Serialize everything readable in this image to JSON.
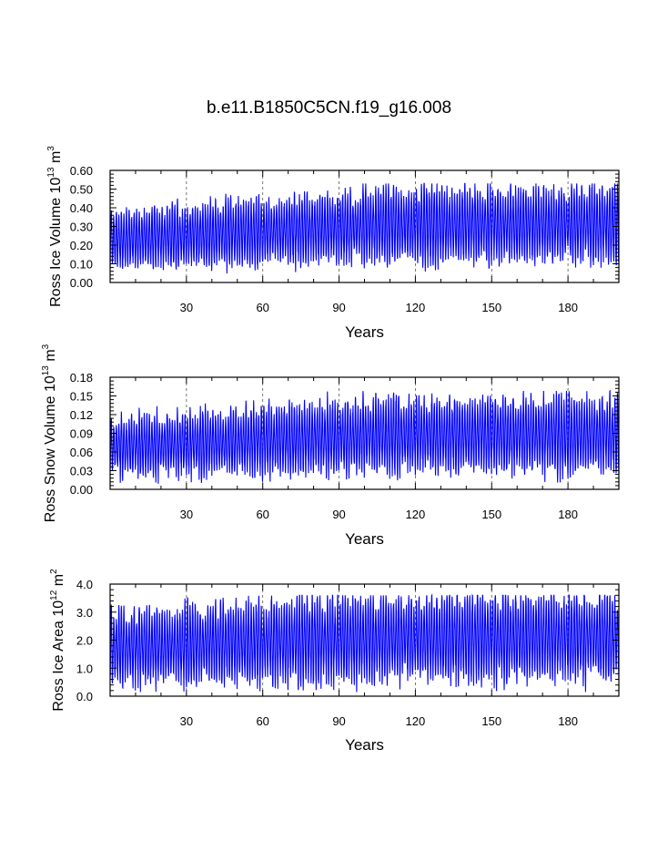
{
  "title": "b.e11.B1850C5CN.f19_g16.008",
  "colors": {
    "series": "#0000ff",
    "axis": "#000000",
    "grid": "#555555"
  },
  "chart_data": [
    {
      "type": "line",
      "name": "ice-volume",
      "title": "",
      "xlabel": "Years",
      "ylabel": {
        "base": "Ross Ice Volume 10",
        "exp": "13",
        "unit": " m",
        "unit_exp": "3"
      },
      "xlim": [
        0,
        200
      ],
      "ylim": [
        0.0,
        0.6
      ],
      "xticks": [
        30,
        60,
        90,
        120,
        150,
        180
      ],
      "xtick_labels": [
        "30",
        "60",
        "90",
        "120",
        "150",
        "180"
      ],
      "yticks": [
        0,
        0.1,
        0.2,
        0.3,
        0.4,
        0.5,
        0.6
      ],
      "ytick_labels": [
        "0.00",
        "0.10",
        "0.20",
        "0.30",
        "0.40",
        "0.50",
        "0.60"
      ],
      "grid_x": true,
      "series": [
        {
          "name": "Ross Ice Volume",
          "mean_early": 0.23,
          "mean_late": 0.31,
          "amp_early": 0.27,
          "amp_late": 0.36,
          "min": 0.02,
          "max": 0.53
        }
      ]
    },
    {
      "type": "line",
      "name": "snow-volume",
      "title": "",
      "xlabel": "Years",
      "ylabel": {
        "base": "Ross Snow Volume 10",
        "exp": "13",
        "unit": " m",
        "unit_exp": "3"
      },
      "xlim": [
        0,
        200
      ],
      "ylim": [
        0.0,
        0.18
      ],
      "xticks": [
        30,
        60,
        90,
        120,
        150,
        180
      ],
      "xtick_labels": [
        "30",
        "60",
        "90",
        "120",
        "150",
        "180"
      ],
      "yticks": [
        0,
        0.03,
        0.06,
        0.09,
        0.12,
        0.15,
        0.18
      ],
      "ytick_labels": [
        "0.00",
        "0.03",
        "0.06",
        "0.09",
        "0.12",
        "0.15",
        "0.18"
      ],
      "grid_x": true,
      "series": [
        {
          "name": "Ross Snow Volume",
          "mean_early": 0.068,
          "mean_late": 0.088,
          "amp_early": 0.085,
          "amp_late": 0.11,
          "min": 0.003,
          "max": 0.158
        }
      ]
    },
    {
      "type": "line",
      "name": "ice-area",
      "title": "",
      "xlabel": "Years",
      "ylabel": {
        "base": "Ross Ice Area 10",
        "exp": "12",
        "unit": " m",
        "unit_exp": "2"
      },
      "xlim": [
        0,
        200
      ],
      "ylim": [
        0.0,
        4.0
      ],
      "xticks": [
        30,
        60,
        90,
        120,
        150,
        180
      ],
      "xtick_labels": [
        "30",
        "60",
        "90",
        "120",
        "150",
        "180"
      ],
      "yticks": [
        0,
        1,
        2,
        3,
        4
      ],
      "ytick_labels": [
        "0.0",
        "1.0",
        "2.0",
        "3.0",
        "4.0"
      ],
      "grid_x": true,
      "series": [
        {
          "name": "Ross Ice Area",
          "mean_early": 1.75,
          "mean_late": 2.1,
          "amp_early": 2.4,
          "amp_late": 2.8,
          "min": 0.15,
          "max": 3.6
        }
      ]
    }
  ]
}
